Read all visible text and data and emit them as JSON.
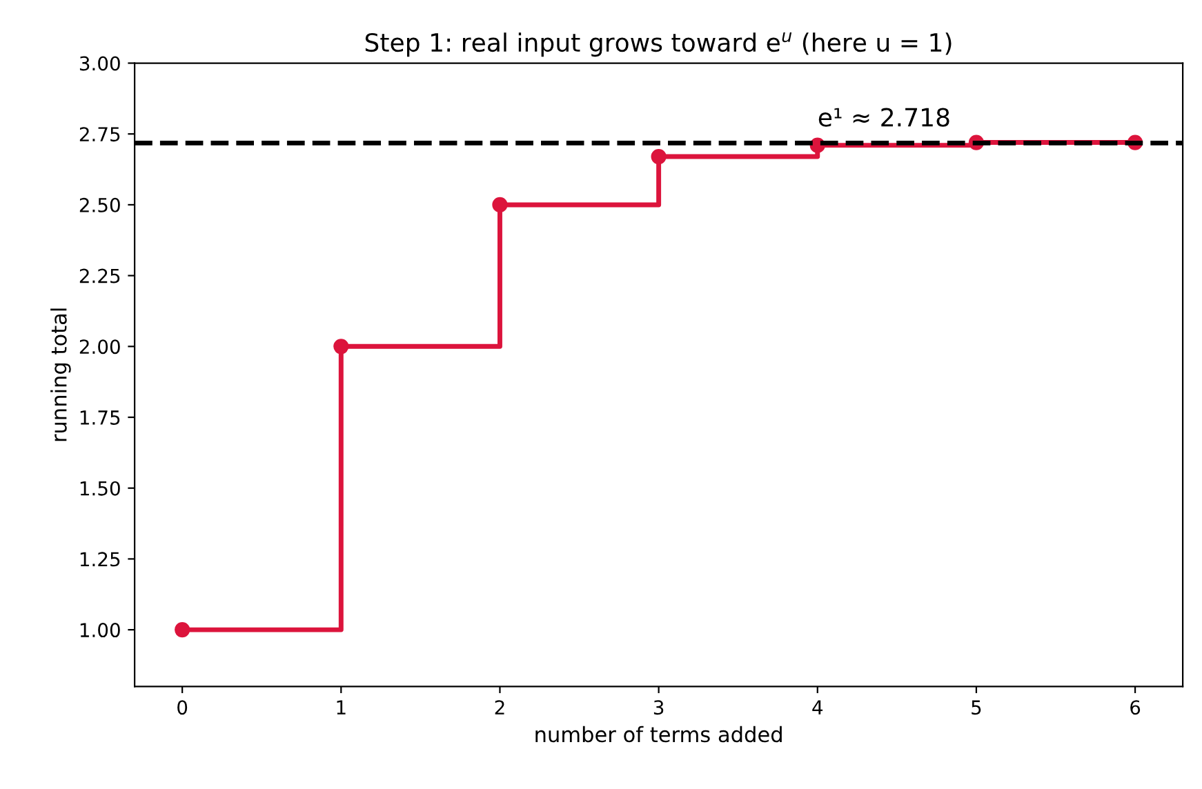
{
  "chart_data": {
    "type": "step",
    "title": "Step 1: real input grows toward e$^{u}$ (here u = 1)",
    "xlabel": "number of terms added",
    "ylabel": "running total",
    "x": [
      0,
      1,
      2,
      3,
      4,
      5,
      6
    ],
    "series": [
      {
        "color": "#dc143c",
        "values": [
          1,
          2,
          2.5,
          2.67,
          2.71,
          2.72,
          2.72
        ]
      }
    ],
    "xlim": [
      -0.3,
      6.3
    ],
    "xticks": [
      0,
      1,
      2,
      3,
      4,
      5,
      6
    ],
    "ylim": [
      0.8,
      3.0
    ],
    "yticks": [
      {
        "value": 1,
        "label": "1.00"
      },
      {
        "value": 1.25,
        "label": "1.25"
      },
      {
        "value": 1.5,
        "label": "1.50"
      },
      {
        "value": 1.75,
        "label": "1.75"
      },
      {
        "value": 2,
        "label": "2.00"
      },
      {
        "value": 2.25,
        "label": "2.25"
      },
      {
        "value": 2.5,
        "label": "2.50"
      },
      {
        "value": 2.75,
        "label": "2.75"
      },
      {
        "value": 3,
        "label": "3.00"
      }
    ],
    "ref_lines": [
      {
        "axis": "y",
        "value": 2.718,
        "color": "#000000",
        "line_style": "dashed"
      }
    ],
    "annotations": [
      {
        "text": "e¹ ≈ 2.718",
        "x": 4,
        "y": 2.718
      }
    ],
    "marker": "circle",
    "line_style": "solid",
    "grid": false
  }
}
